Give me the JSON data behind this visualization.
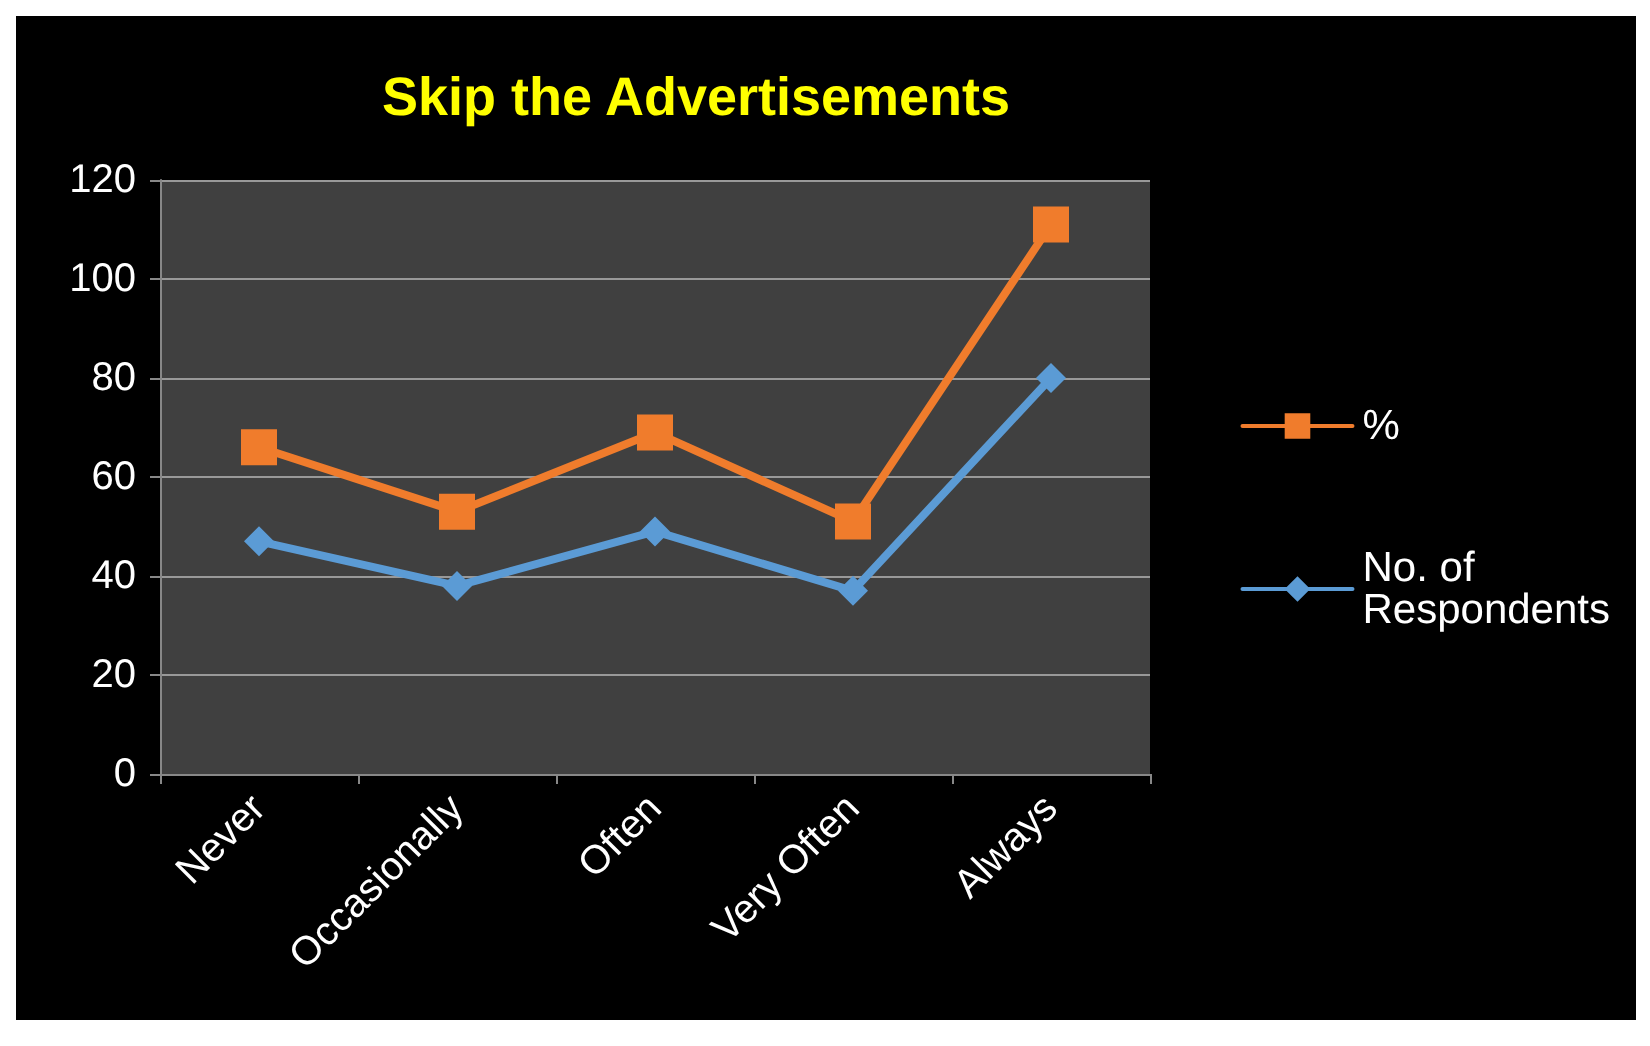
{
  "chart_data": {
    "type": "line",
    "title": "Skip the Advertisements",
    "categories": [
      "Never",
      "Occasionally",
      "Often",
      "Very Often",
      "Always"
    ],
    "series": [
      {
        "name": "%",
        "color": "#f07c2c",
        "marker": "square",
        "values": [
          66,
          53,
          69,
          51,
          111
        ]
      },
      {
        "name": "No. of Respondents",
        "color": "#5b9bd5",
        "marker": "diamond",
        "values": [
          47,
          38,
          49,
          37,
          80
        ]
      }
    ],
    "ylim": [
      0,
      120
    ],
    "yticks": [
      0,
      20,
      40,
      60,
      80,
      100,
      120
    ],
    "grid": "y",
    "legend": "right",
    "line_style": "solid"
  }
}
